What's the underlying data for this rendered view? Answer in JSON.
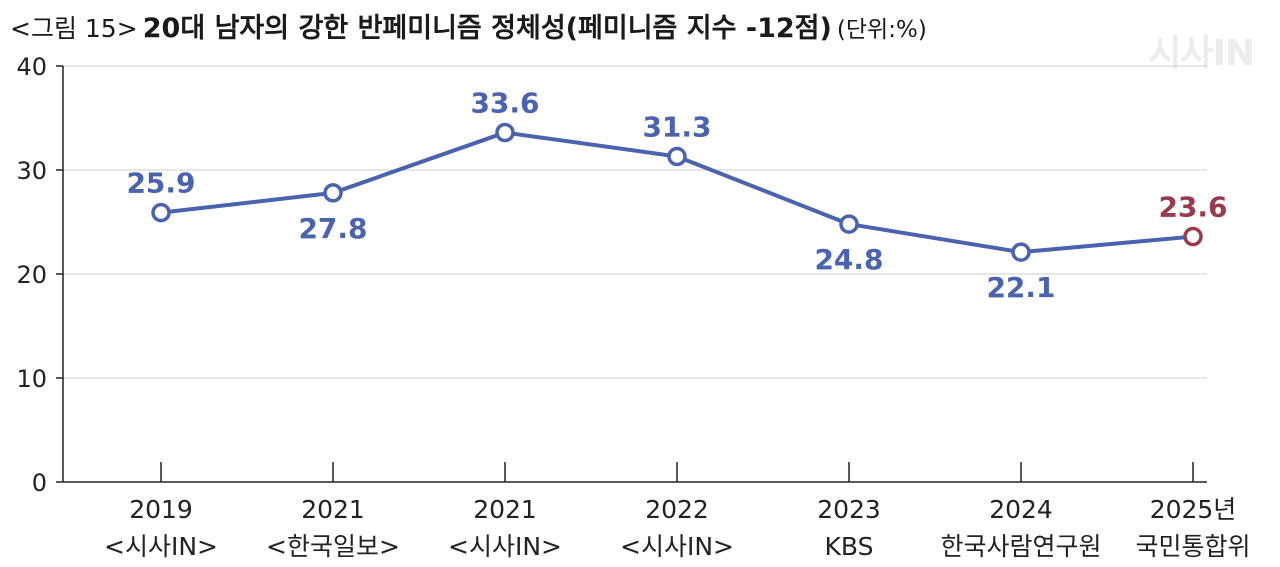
{
  "header": {
    "label": "<그림 15>",
    "title": "20대 남자의 강한 반페미니즘 정체성(페미니즘 지수 -12점)",
    "unit": "(단위:%)"
  },
  "watermark": "시사IN",
  "colors": {
    "primary": "#4a63b0",
    "highlight": "#9b3a4e",
    "axis": "#222222",
    "grid": "#cccccc"
  },
  "chart_data": {
    "type": "line",
    "title": "20대 남자의 강한 반페미니즘 정체성(페미니즘 지수 -12점)",
    "unit": "(단위:%)",
    "categories": [
      "2019",
      "2021",
      "2021",
      "2022",
      "2023",
      "2024",
      "2025년"
    ],
    "sources": [
      "<시사IN>",
      "<한국일보>",
      "<시사IN>",
      "<시사IN>",
      "KBS",
      "한국사람연구원",
      "국민통합위"
    ],
    "values": [
      25.9,
      27.8,
      33.6,
      31.3,
      24.8,
      22.1,
      23.6
    ],
    "label_positions": [
      "above",
      "below",
      "above",
      "above",
      "below",
      "below",
      "above"
    ],
    "highlight_index": 6,
    "yticks": [
      0,
      10,
      20,
      30,
      40
    ],
    "ylim": [
      0,
      40
    ],
    "grid": true,
    "legend": "none"
  }
}
